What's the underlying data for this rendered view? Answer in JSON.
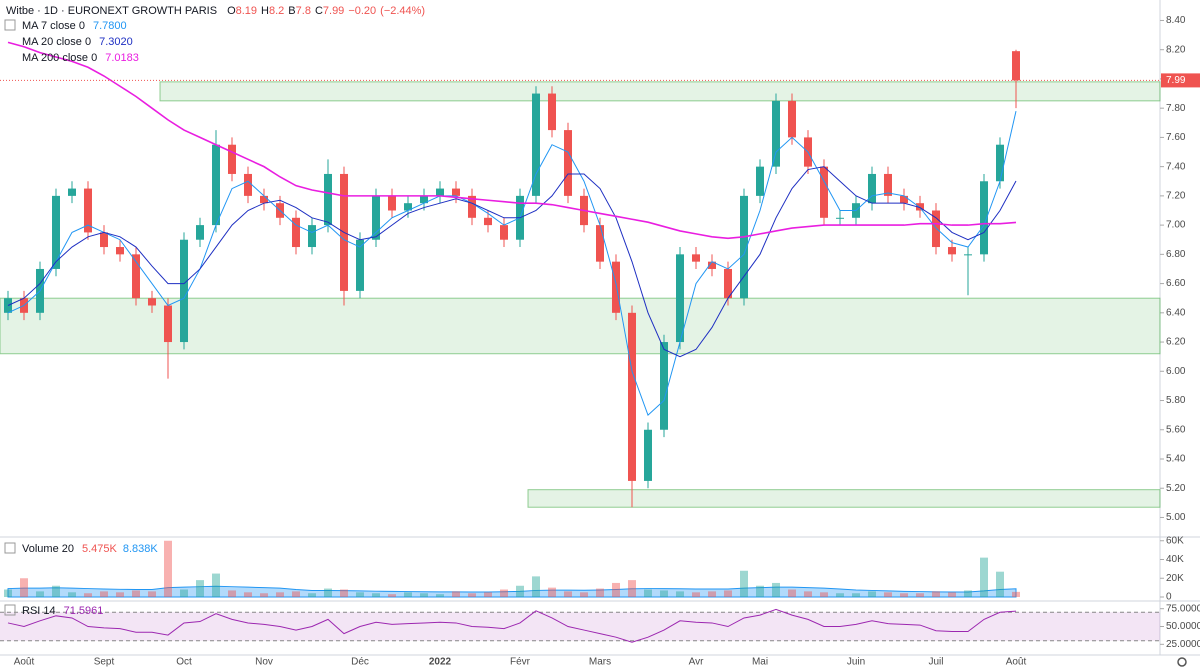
{
  "chart_data": [
    {
      "type": "candlestick",
      "title": "Witbe · 1D · EURONEXT GROWTH PARIS",
      "ohlc_letters": [
        "O",
        "H",
        "B",
        "C"
      ],
      "change": "−0.20",
      "change_pct": "(−2.44%)",
      "categories": [
        null,
        "Août",
        null,
        null,
        null,
        null,
        "Sept",
        null,
        null,
        null,
        null,
        "Oct",
        null,
        null,
        null,
        null,
        "Nov",
        null,
        null,
        null,
        null,
        null,
        "Déc",
        null,
        null,
        null,
        null,
        "2022",
        null,
        null,
        null,
        null,
        "Févr",
        null,
        null,
        null,
        null,
        "Mars",
        null,
        null,
        null,
        null,
        null,
        "Avr",
        null,
        null,
        null,
        "Mai",
        null,
        null,
        null,
        null,
        null,
        "Juin",
        null,
        null,
        null,
        null,
        "Juil",
        null,
        null,
        null,
        null,
        "Août"
      ],
      "open": [
        6.4,
        6.5,
        6.4,
        6.7,
        7.2,
        7.25,
        6.95,
        6.85,
        6.8,
        6.5,
        6.45,
        6.2,
        6.9,
        7.0,
        7.55,
        7.35,
        7.2,
        7.15,
        7.05,
        6.85,
        7.0,
        7.35,
        6.55,
        6.9,
        7.2,
        7.1,
        7.15,
        7.2,
        7.25,
        7.2,
        7.05,
        7.0,
        6.9,
        7.2,
        7.9,
        7.65,
        7.2,
        7.0,
        6.75,
        6.4,
        5.25,
        5.6,
        6.2,
        6.8,
        6.75,
        6.7,
        6.5,
        7.2,
        7.4,
        7.85,
        7.6,
        7.4,
        7.05,
        7.05,
        7.15,
        7.35,
        7.2,
        7.15,
        7.1,
        6.85,
        6.8,
        6.8,
        7.3,
        8.19
      ],
      "high": [
        6.55,
        6.55,
        6.75,
        7.25,
        7.3,
        7.3,
        7.0,
        6.9,
        6.85,
        6.55,
        6.5,
        6.95,
        7.05,
        7.65,
        7.6,
        7.4,
        7.25,
        7.2,
        7.1,
        7.05,
        7.45,
        7.4,
        6.95,
        7.25,
        7.25,
        7.2,
        7.25,
        7.3,
        7.3,
        7.25,
        7.1,
        7.05,
        7.25,
        7.95,
        7.95,
        7.7,
        7.25,
        7.05,
        6.8,
        6.45,
        5.65,
        6.25,
        6.85,
        6.85,
        6.8,
        6.75,
        7.25,
        7.45,
        7.9,
        7.9,
        7.65,
        7.45,
        7.1,
        7.2,
        7.4,
        7.4,
        7.25,
        7.2,
        7.15,
        6.9,
        6.85,
        7.35,
        7.6,
        8.2
      ],
      "low": [
        6.35,
        6.35,
        6.35,
        6.65,
        7.15,
        6.9,
        6.8,
        6.75,
        6.45,
        6.4,
        5.95,
        6.15,
        6.85,
        6.95,
        7.3,
        7.15,
        7.1,
        7.0,
        6.8,
        6.8,
        6.95,
        6.45,
        6.5,
        6.85,
        7.05,
        7.05,
        7.1,
        7.15,
        7.15,
        7.0,
        6.95,
        6.85,
        6.85,
        7.15,
        7.6,
        7.15,
        6.95,
        6.7,
        6.35,
        5.07,
        5.2,
        5.55,
        6.15,
        6.7,
        6.65,
        6.45,
        6.45,
        7.15,
        7.35,
        7.55,
        7.35,
        7.0,
        7.0,
        7.0,
        7.1,
        7.15,
        7.1,
        7.05,
        6.8,
        6.75,
        6.52,
        6.75,
        7.25,
        7.8
      ],
      "close": [
        6.5,
        6.4,
        6.7,
        7.2,
        7.25,
        6.95,
        6.85,
        6.8,
        6.5,
        6.45,
        6.2,
        6.9,
        7.0,
        7.55,
        7.35,
        7.2,
        7.15,
        7.05,
        6.85,
        7.0,
        7.35,
        6.55,
        6.9,
        7.2,
        7.1,
        7.15,
        7.2,
        7.25,
        7.2,
        7.05,
        7.0,
        6.9,
        7.2,
        7.9,
        7.65,
        7.2,
        7.0,
        6.75,
        6.4,
        5.25,
        5.6,
        6.2,
        6.8,
        6.75,
        6.7,
        6.5,
        7.2,
        7.4,
        7.85,
        7.6,
        7.4,
        7.05,
        7.05,
        7.15,
        7.35,
        7.2,
        7.15,
        7.1,
        6.85,
        6.8,
        6.8,
        7.3,
        7.55,
        7.99
      ],
      "up_color": "#26a69a",
      "down_color": "#ef5350",
      "series": [
        {
          "name": "MA 7 close 0",
          "legend_value": "7.7800",
          "color": "#2196f3",
          "values": [
            6.4,
            6.45,
            6.55,
            6.75,
            6.95,
            7.0,
            6.95,
            6.9,
            6.75,
            6.6,
            6.45,
            6.5,
            6.7,
            7.0,
            7.25,
            7.3,
            7.2,
            7.1,
            7.0,
            6.95,
            7.0,
            6.9,
            6.85,
            6.95,
            7.05,
            7.1,
            7.15,
            7.2,
            7.2,
            7.15,
            7.08,
            7.0,
            7.05,
            7.35,
            7.55,
            7.5,
            7.3,
            7.0,
            6.6,
            6.0,
            5.7,
            5.8,
            6.2,
            6.6,
            6.75,
            6.7,
            6.8,
            7.1,
            7.5,
            7.6,
            7.5,
            7.3,
            7.1,
            7.1,
            7.2,
            7.22,
            7.2,
            7.12,
            6.98,
            6.88,
            6.85,
            7.0,
            7.3,
            7.78
          ]
        },
        {
          "name": "MA 20 close 0",
          "legend_value": "7.3020",
          "color": "#1e2fc2",
          "values": [
            6.45,
            6.5,
            6.6,
            6.75,
            6.85,
            6.92,
            6.95,
            6.92,
            6.85,
            6.72,
            6.6,
            6.6,
            6.7,
            6.85,
            7.0,
            7.1,
            7.15,
            7.17,
            7.12,
            7.05,
            7.02,
            6.95,
            6.9,
            6.92,
            7.0,
            7.08,
            7.12,
            7.15,
            7.18,
            7.15,
            7.1,
            7.05,
            7.05,
            7.1,
            7.2,
            7.35,
            7.35,
            7.25,
            7.05,
            6.75,
            6.4,
            6.15,
            6.1,
            6.15,
            6.3,
            6.5,
            6.65,
            6.8,
            7.05,
            7.25,
            7.38,
            7.4,
            7.3,
            7.2,
            7.15,
            7.15,
            7.15,
            7.12,
            7.05,
            6.95,
            6.9,
            6.95,
            7.1,
            7.302
          ]
        },
        {
          "name": "MA 200 close 0",
          "legend_value": "7.0183",
          "color": "#e91ee0",
          "values": [
            8.25,
            8.22,
            8.18,
            8.15,
            8.12,
            8.08,
            8.02,
            7.95,
            7.88,
            7.8,
            7.72,
            7.65,
            7.6,
            7.55,
            7.5,
            7.45,
            7.4,
            7.33,
            7.27,
            7.24,
            7.22,
            7.2,
            7.2,
            7.2,
            7.2,
            7.2,
            7.2,
            7.2,
            7.19,
            7.18,
            7.17,
            7.16,
            7.15,
            7.15,
            7.14,
            7.12,
            7.1,
            7.08,
            7.06,
            7.04,
            7.02,
            6.99,
            6.96,
            6.94,
            6.92,
            6.91,
            6.92,
            6.94,
            6.96,
            6.98,
            6.99,
            7.0,
            7.0,
            7.0,
            7.0,
            7.0,
            7.0,
            7.01,
            7.01,
            7.0,
            7.0,
            7.01,
            7.01,
            7.0183
          ]
        }
      ],
      "zones": [
        {
          "start": 10,
          "low": 7.85,
          "high": 7.98
        },
        {
          "start": 0,
          "low": 6.12,
          "high": 6.5
        },
        {
          "start": 33,
          "low": 5.07,
          "high": 5.19
        }
      ],
      "zone_color": "#4caf50",
      "last_price": 7.99,
      "ylim": [
        4.88,
        8.54
      ],
      "yticks": [
        {
          "value": 5,
          "label": "5.00"
        },
        {
          "value": 5.2,
          "label": "5.20"
        },
        {
          "value": 5.4,
          "label": "5.40"
        },
        {
          "value": 5.6,
          "label": "5.60"
        },
        {
          "value": 5.8,
          "label": "5.80"
        },
        {
          "value": 6,
          "label": "6.00"
        },
        {
          "value": 6.2,
          "label": "6.20"
        },
        {
          "value": 6.4,
          "label": "6.40"
        },
        {
          "value": 6.6,
          "label": "6.60"
        },
        {
          "value": 6.8,
          "label": "6.80"
        },
        {
          "value": 7,
          "label": "7.00"
        },
        {
          "value": 7.2,
          "label": "7.20"
        },
        {
          "value": 7.4,
          "label": "7.40"
        },
        {
          "value": 7.6,
          "label": "7.60"
        },
        {
          "value": 7.8,
          "label": "7.80"
        },
        {
          "value": 8,
          "label": "8.00"
        },
        {
          "value": 8.2,
          "label": "8.20"
        },
        {
          "value": 8.4,
          "label": "8.40"
        }
      ]
    },
    {
      "type": "volume",
      "title": "Volume 20",
      "legend_values": [
        "5.475K",
        "8.838K"
      ],
      "values": [
        8000,
        20000,
        6000,
        12000,
        5000,
        4000,
        6000,
        5000,
        7000,
        6000,
        60000,
        8000,
        18000,
        25000,
        7000,
        5000,
        4000,
        5000,
        6000,
        4000,
        9000,
        8000,
        5000,
        4000,
        3000,
        5000,
        4000,
        3000,
        6000,
        4000,
        5000,
        8000,
        12000,
        22000,
        10000,
        6000,
        5000,
        9000,
        15000,
        18000,
        8000,
        7000,
        6000,
        5000,
        6000,
        7000,
        28000,
        12000,
        15000,
        8000,
        6000,
        5000,
        4000,
        4000,
        6000,
        5000,
        4000,
        4000,
        6000,
        5000,
        7000,
        42000,
        27000,
        5475
      ],
      "ma_values": [
        9000,
        9500,
        9500,
        9800,
        9500,
        9000,
        8500,
        8200,
        8000,
        8000,
        10000,
        10500,
        11000,
        11500,
        11000,
        10500,
        10000,
        9500,
        8000,
        7000,
        7000,
        6800,
        6500,
        6200,
        6000,
        5800,
        5600,
        5500,
        5500,
        5400,
        5400,
        5600,
        6000,
        7000,
        7300,
        7300,
        7200,
        7500,
        8000,
        8800,
        9000,
        9000,
        8800,
        8500,
        8500,
        8500,
        9500,
        10000,
        10500,
        10500,
        10000,
        9500,
        8500,
        7500,
        7000,
        6500,
        6000,
        5800,
        5500,
        5400,
        5400,
        6500,
        8000,
        8838
      ],
      "ma_color": "#2196f3",
      "ylim": [
        0,
        64000
      ],
      "yticks": [
        {
          "value": 0,
          "label": "0"
        },
        {
          "value": 20000,
          "label": "20K"
        },
        {
          "value": 40000,
          "label": "40K"
        },
        {
          "value": 60000,
          "label": "60K"
        }
      ]
    },
    {
      "type": "line",
      "title": "RSI 14",
      "color": "#9c27b0",
      "values": [
        55,
        50,
        58,
        65,
        62,
        50,
        48,
        47,
        42,
        42,
        38,
        55,
        57,
        68,
        60,
        55,
        53,
        50,
        45,
        50,
        60,
        40,
        50,
        56,
        53,
        54,
        55,
        56,
        55,
        50,
        49,
        47,
        55,
        72,
        62,
        50,
        45,
        40,
        35,
        28,
        35,
        45,
        58,
        56,
        55,
        50,
        62,
        66,
        74,
        66,
        60,
        50,
        50,
        53,
        58,
        54,
        53,
        52,
        44,
        43,
        43,
        60,
        70,
        71.5961
      ],
      "band": [
        30,
        70
      ],
      "ylim": [
        10,
        83
      ],
      "yticks": [
        {
          "value": 25,
          "label": "25.0000"
        },
        {
          "value": 50,
          "label": "50.0000"
        },
        {
          "value": 75,
          "label": "75.0000"
        }
      ]
    }
  ]
}
